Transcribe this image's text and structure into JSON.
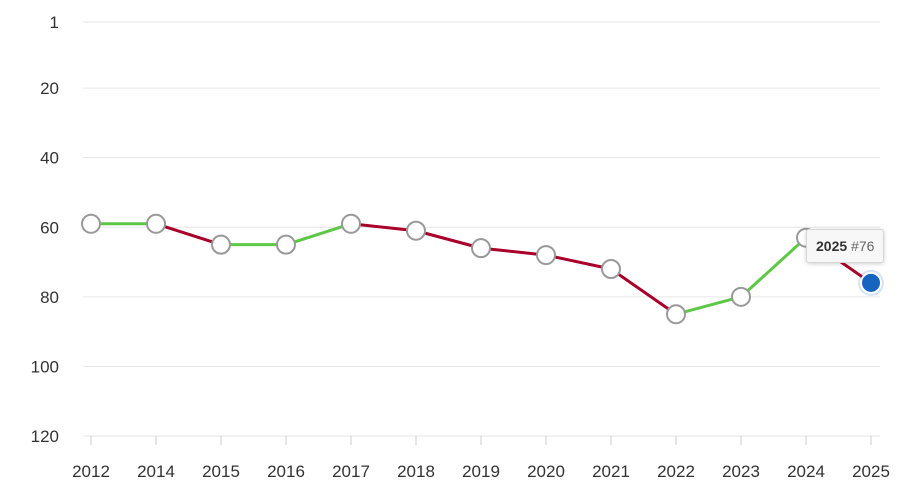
{
  "chart_data": {
    "type": "line",
    "title": "",
    "xlabel": "",
    "ylabel": "",
    "x": [
      "2012",
      "2014",
      "2015",
      "2016",
      "2017",
      "2018",
      "2019",
      "2020",
      "2021",
      "2022",
      "2023",
      "2024",
      "2025"
    ],
    "values": [
      59,
      59,
      65,
      65,
      59,
      61,
      66,
      68,
      72,
      85,
      80,
      63,
      76
    ],
    "y_ticks": [
      "1",
      "20",
      "40",
      "60",
      "80",
      "100",
      "120"
    ],
    "ylim": [
      1,
      120
    ],
    "y_inverted": true,
    "grid": true,
    "colors": {
      "improve": "#5cc846",
      "decline": "#a8002a",
      "marker_fill": "#ffffff",
      "marker_stroke": "#999999",
      "highlight": "#1565c0",
      "grid": "#e6e6e6"
    }
  },
  "tooltip": {
    "year": "2025",
    "rank": "#76"
  }
}
